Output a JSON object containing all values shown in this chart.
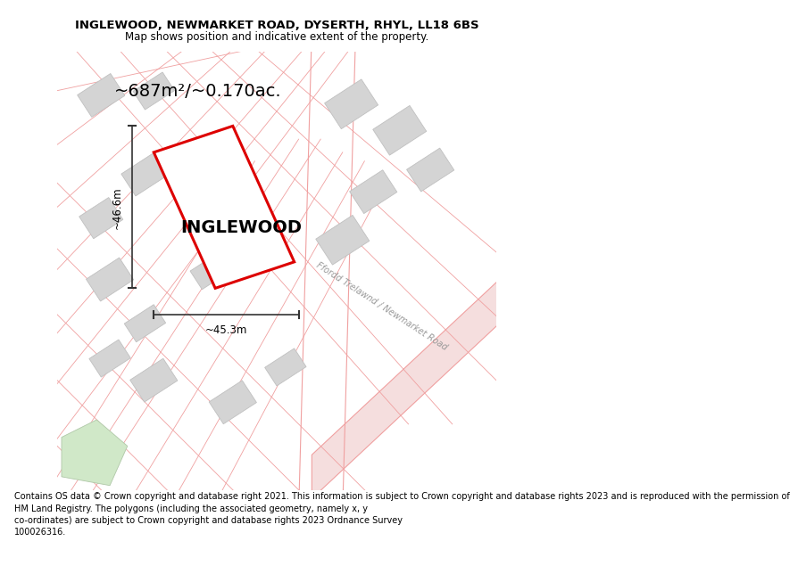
{
  "title": "INGLEWOOD, NEWMARKET ROAD, DYSERTH, RHYL, LL18 6BS",
  "subtitle": "Map shows position and indicative extent of the property.",
  "area_label": "~687m²/~0.170ac.",
  "property_label": "INGLEWOOD",
  "dim_width": "~45.3m",
  "dim_height": "~46.6m",
  "road_label": "Ffordd Trelawnd / Newmarket Road",
  "footer": "Contains OS data © Crown copyright and database right 2021. This information is subject to Crown copyright and database rights 2023 and is reproduced with the permission of\nHM Land Registry. The polygons (including the associated geometry, namely x, y\nco-ordinates) are subject to Crown copyright and database rights 2023 Ordnance Survey\n100026316.",
  "map_bg": "#faf7f5",
  "road_line_color": "#f0a0a0",
  "road_fill_color": "#f5dede",
  "building_fill": "#d4d4d4",
  "building_stroke": "#c0c0c0",
  "green_fill": "#d0e8c8",
  "green_stroke": "#b0c8a8",
  "property_stroke": "#dd0000",
  "property_lw": 2.2,
  "dim_color": "#333333",
  "title_fontsize": 9.5,
  "subtitle_fontsize": 8.5,
  "footer_fontsize": 7.0,
  "area_fontsize": 14,
  "property_fontsize": 14,
  "dim_fontsize": 8.5,
  "road_label_fontsize": 7
}
